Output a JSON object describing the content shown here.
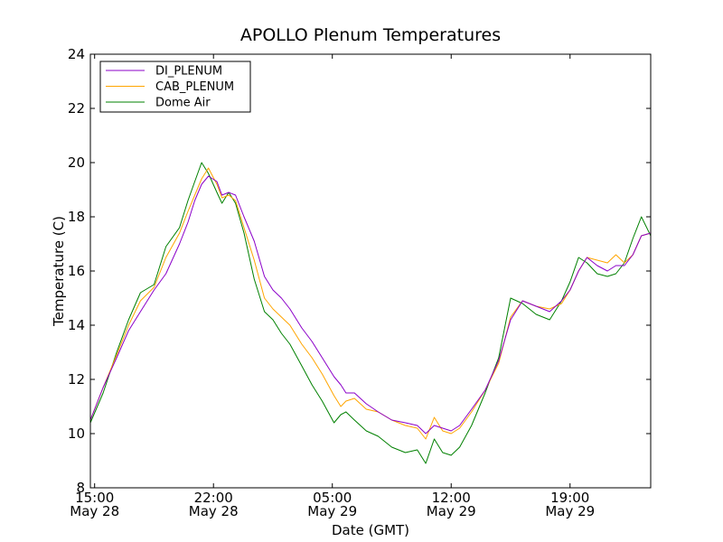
{
  "chart_data": {
    "type": "line",
    "title": "APOLLO Plenum Temperatures",
    "xlabel": "Date (GMT)",
    "ylabel": "Temperature (C)",
    "x_unit": "hours since May 28 00:00 GMT",
    "xlim": [
      14.75,
      47.75
    ],
    "ylim": [
      8,
      24
    ],
    "y_ticks": [
      8,
      10,
      12,
      14,
      16,
      18,
      20,
      22,
      24
    ],
    "x_ticks": [
      {
        "value": 15,
        "time": "15:00",
        "date": "May 28"
      },
      {
        "value": 22,
        "time": "22:00",
        "date": "May 28"
      },
      {
        "value": 29,
        "time": "05:00",
        "date": "May 29"
      },
      {
        "value": 36,
        "time": "12:00",
        "date": "May 29"
      },
      {
        "value": 43,
        "time": "19:00",
        "date": "May 29"
      }
    ],
    "grid": false,
    "legend_position": "top-left",
    "series": [
      {
        "name": "DI_PLENUM",
        "color": "#8B00C9",
        "x": [
          14.75,
          15.5,
          16.3,
          17.0,
          17.7,
          18.5,
          19.2,
          20.0,
          20.5,
          20.9,
          21.3,
          21.7,
          22.2,
          22.5,
          22.9,
          23.3,
          23.8,
          24.4,
          25.0,
          25.5,
          26.0,
          26.5,
          27.2,
          27.8,
          28.4,
          29.1,
          29.5,
          29.8,
          30.3,
          31.0,
          31.7,
          32.5,
          33.3,
          34.0,
          34.5,
          35.0,
          35.5,
          36.0,
          36.5,
          37.2,
          38.0,
          38.8,
          39.5,
          40.2,
          41.0,
          41.8,
          42.5,
          43.0,
          43.5,
          44.0,
          44.6,
          45.2,
          45.7,
          46.2,
          46.7,
          47.2,
          47.75
        ],
        "y": [
          10.5,
          11.7,
          12.8,
          13.8,
          14.5,
          15.3,
          15.9,
          17.0,
          17.8,
          18.6,
          19.2,
          19.5,
          19.3,
          18.8,
          18.9,
          18.8,
          18.0,
          17.1,
          15.8,
          15.3,
          15.0,
          14.6,
          13.9,
          13.4,
          12.8,
          12.1,
          11.8,
          11.5,
          11.5,
          11.1,
          10.8,
          10.5,
          10.4,
          10.3,
          10.0,
          10.3,
          10.2,
          10.1,
          10.3,
          10.9,
          11.6,
          12.7,
          14.2,
          14.9,
          14.7,
          14.5,
          14.9,
          15.3,
          16.0,
          16.5,
          16.2,
          16.0,
          16.2,
          16.2,
          16.6,
          17.3,
          17.4
        ]
      },
      {
        "name": "CAB_PLENUM",
        "color": "#FFA500",
        "x": [
          14.75,
          15.5,
          16.3,
          17.0,
          17.7,
          18.5,
          19.2,
          20.0,
          20.5,
          20.9,
          21.3,
          21.7,
          22.2,
          22.5,
          22.9,
          23.3,
          23.8,
          24.4,
          25.0,
          25.5,
          26.0,
          26.5,
          27.2,
          27.8,
          28.4,
          29.1,
          29.5,
          29.8,
          30.3,
          31.0,
          31.7,
          32.5,
          33.3,
          34.0,
          34.5,
          35.0,
          35.5,
          36.0,
          36.5,
          37.2,
          38.0,
          38.8,
          39.5,
          40.2,
          41.0,
          41.8,
          42.5,
          43.0,
          43.5,
          44.0,
          44.6,
          45.2,
          45.7,
          46.2,
          46.7,
          47.2,
          47.75
        ],
        "y": [
          10.5,
          11.7,
          12.9,
          14.0,
          14.9,
          15.4,
          16.5,
          17.4,
          18.2,
          18.8,
          19.4,
          19.8,
          19.2,
          18.7,
          18.8,
          18.6,
          17.6,
          16.4,
          15.0,
          14.6,
          14.3,
          14.0,
          13.3,
          12.8,
          12.2,
          11.4,
          11.0,
          11.2,
          11.3,
          10.9,
          10.8,
          10.5,
          10.3,
          10.2,
          9.8,
          10.6,
          10.1,
          10.0,
          10.2,
          10.8,
          11.6,
          12.6,
          14.3,
          14.9,
          14.7,
          14.6,
          14.8,
          15.3,
          16.0,
          16.5,
          16.4,
          16.3,
          16.6,
          16.3,
          16.6,
          17.3,
          17.4
        ]
      },
      {
        "name": "Dome Air",
        "color": "#008000",
        "x": [
          14.75,
          15.5,
          16.3,
          17.0,
          17.7,
          18.5,
          19.2,
          20.0,
          20.5,
          20.9,
          21.3,
          21.7,
          22.2,
          22.5,
          22.9,
          23.3,
          23.8,
          24.4,
          25.0,
          25.5,
          26.0,
          26.5,
          27.2,
          27.8,
          28.4,
          29.1,
          29.5,
          29.8,
          30.3,
          31.0,
          31.7,
          32.5,
          33.3,
          34.0,
          34.5,
          35.0,
          35.5,
          36.0,
          36.5,
          37.2,
          38.0,
          38.8,
          39.5,
          40.2,
          41.0,
          41.8,
          42.5,
          43.0,
          43.5,
          44.0,
          44.6,
          45.2,
          45.7,
          46.2,
          46.7,
          47.2,
          47.75
        ],
        "y": [
          10.4,
          11.5,
          13.0,
          14.2,
          15.2,
          15.5,
          16.9,
          17.6,
          18.6,
          19.3,
          20.0,
          19.6,
          18.9,
          18.5,
          18.9,
          18.5,
          17.4,
          15.7,
          14.5,
          14.2,
          13.7,
          13.3,
          12.5,
          11.8,
          11.2,
          10.4,
          10.7,
          10.8,
          10.5,
          10.1,
          9.9,
          9.5,
          9.3,
          9.4,
          8.9,
          9.8,
          9.3,
          9.2,
          9.5,
          10.3,
          11.5,
          12.8,
          15.0,
          14.8,
          14.4,
          14.2,
          14.9,
          15.6,
          16.5,
          16.3,
          15.9,
          15.8,
          15.9,
          16.3,
          17.2,
          18.0,
          17.3
        ]
      }
    ]
  }
}
